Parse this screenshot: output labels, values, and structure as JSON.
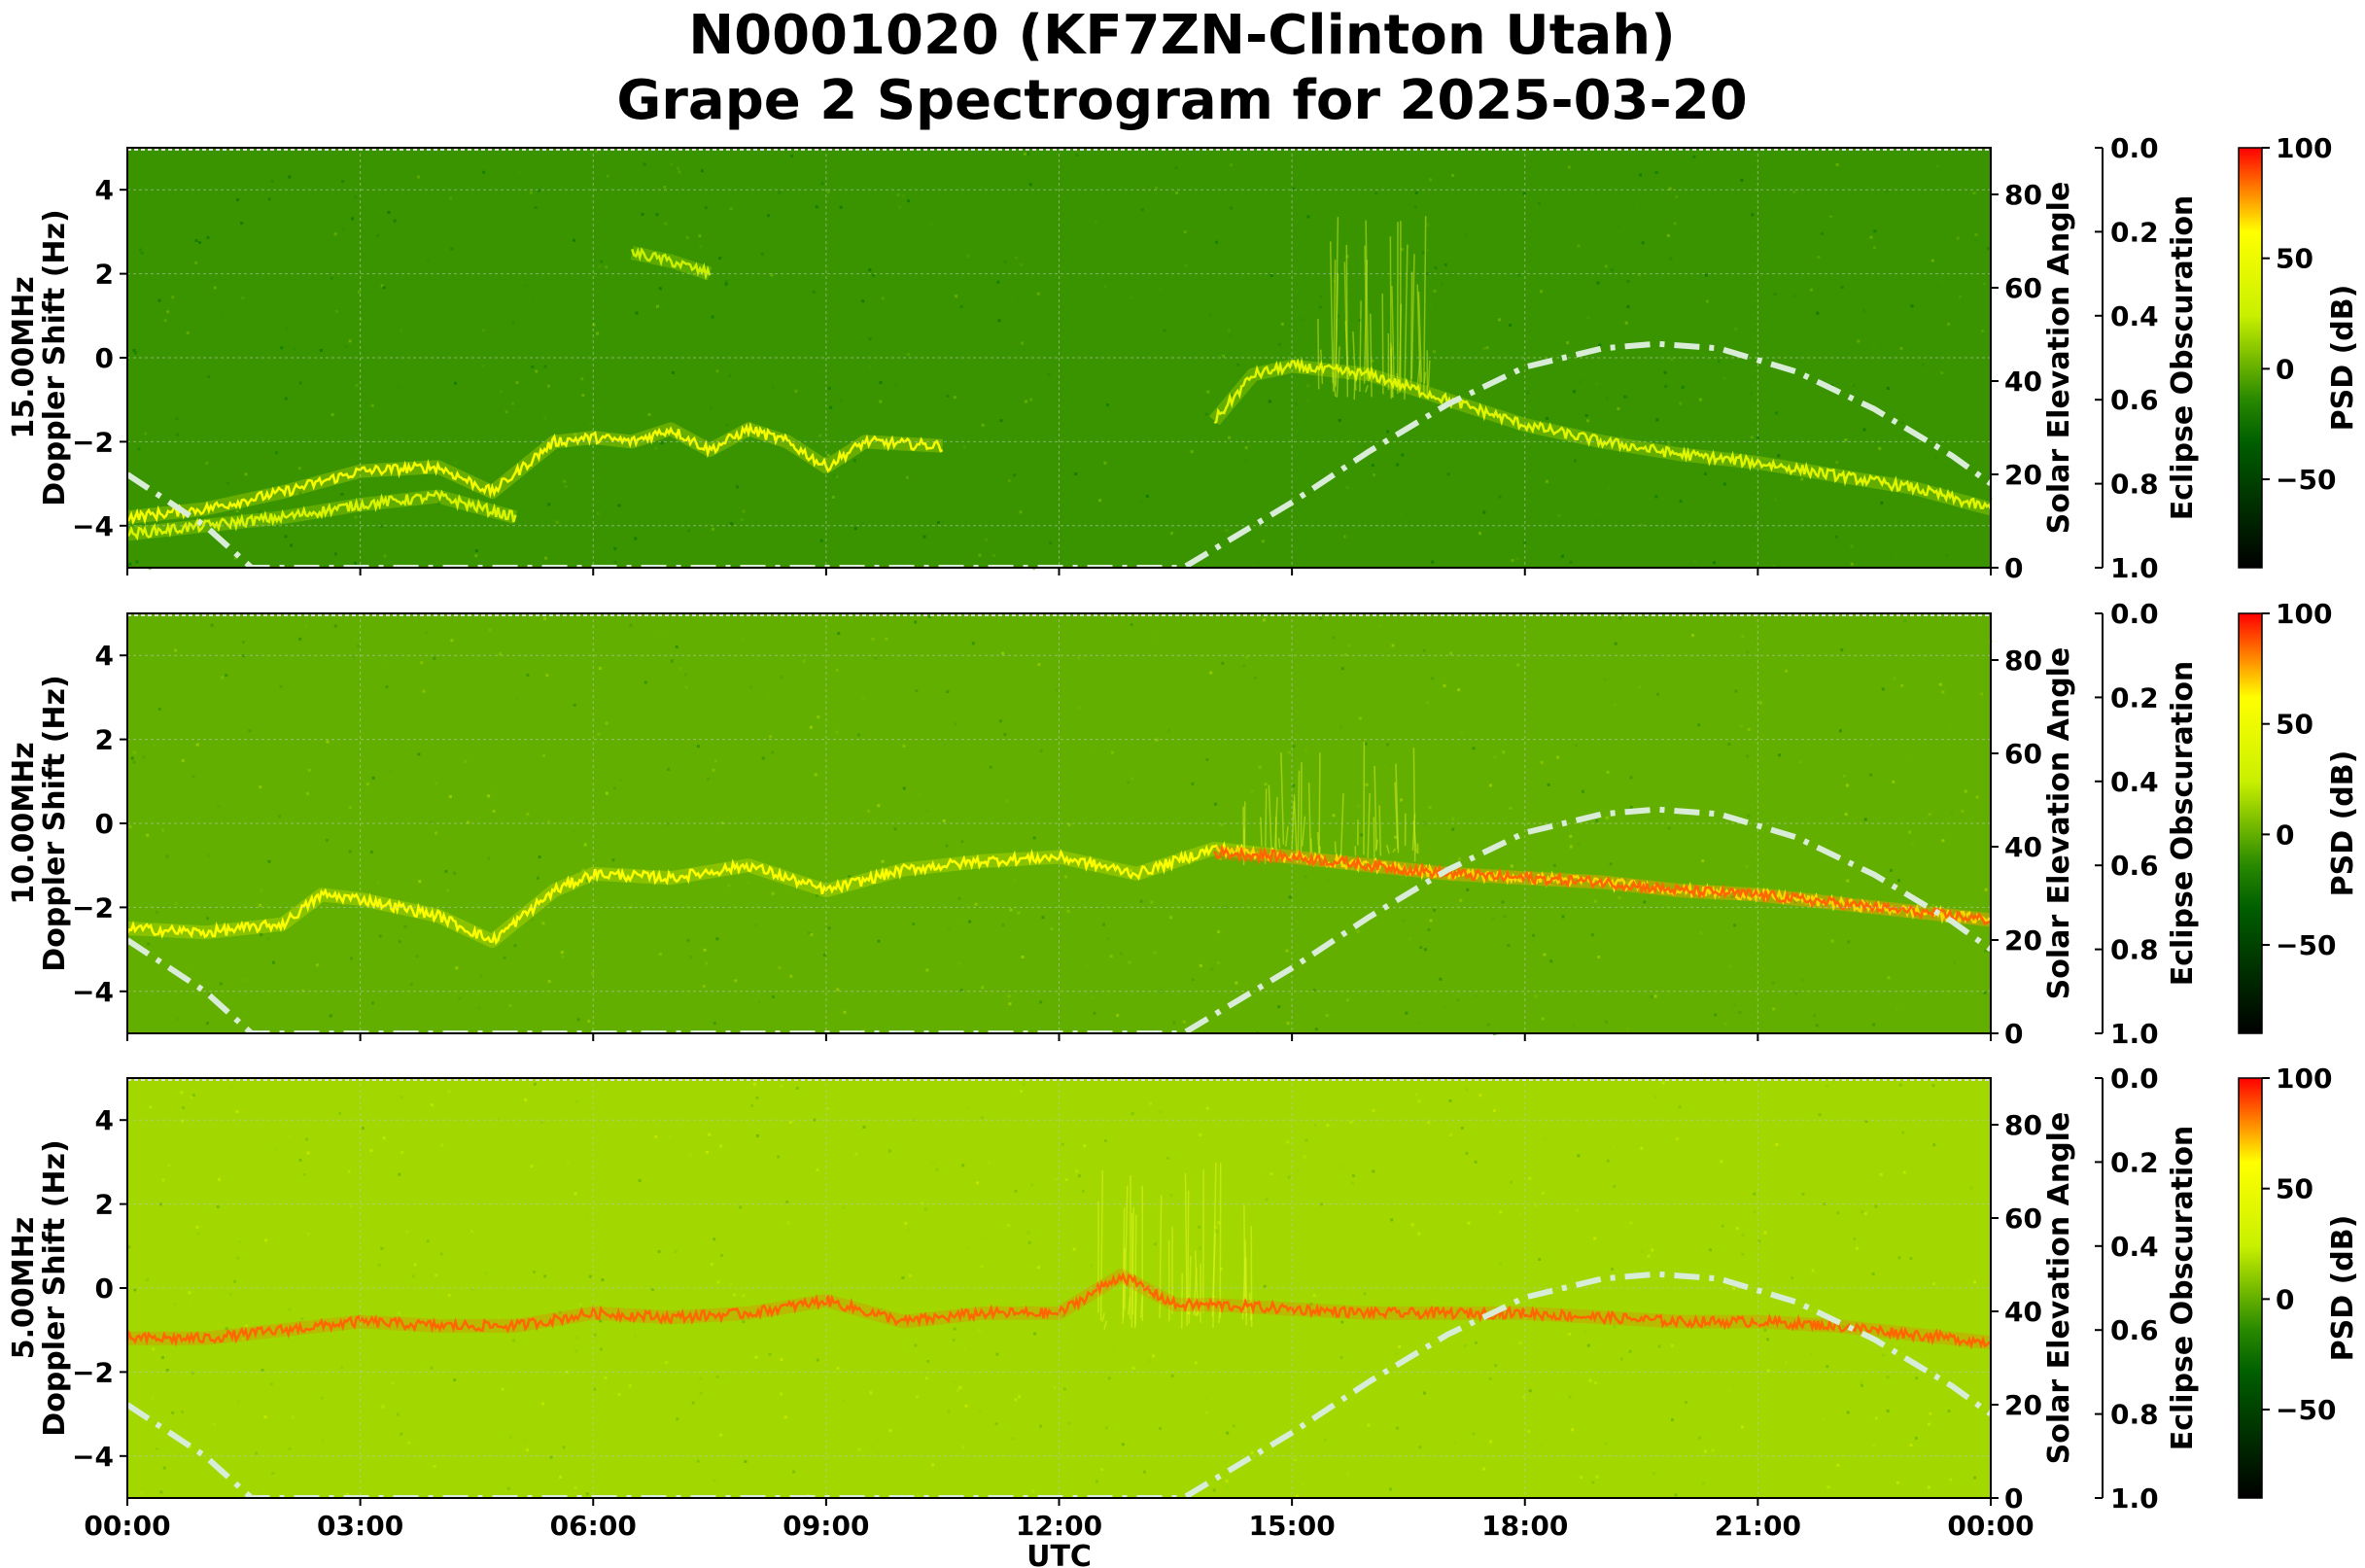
{
  "title_line1": "N0001020 (KF7ZN-Clinton Utah)",
  "title_line2": "Grape 2 Spectrogram for 2025-03-20",
  "colors": {
    "background": "#007a00",
    "trace_yellow": "#f2ff26",
    "trace_red": "#ff3a00",
    "solar_curve": "#d8ecd8",
    "colormap": [
      "#000000",
      "#006f00",
      "#c8f000",
      "#ffff00",
      "#ff0000"
    ]
  },
  "chart_data": [
    {
      "type": "heatmap",
      "panel": "15.00MHz",
      "ylabel": "15.00MHz\nDoppler Shift (Hz)",
      "ylim": [
        -5,
        5
      ],
      "y_ticks": [
        "−4",
        "−2",
        "0",
        "2",
        "4"
      ],
      "y_tick_values": [
        -4,
        -2,
        0,
        2,
        4
      ],
      "xlim_hours": [
        0,
        24
      ],
      "x_ticks": [
        "00:00",
        "03:00",
        "06:00",
        "09:00",
        "12:00",
        "15:00",
        "18:00",
        "21:00",
        "00:00"
      ],
      "right_ylabel": "Solar Elevation Angle",
      "right_ylim": [
        0,
        90
      ],
      "right_ticks": [
        "0",
        "20",
        "40",
        "60",
        "80"
      ],
      "eclipse_label": "Eclipse Obscuration",
      "eclipse_ticks": [
        "0.0",
        "0.2",
        "0.4",
        "0.6",
        "0.8",
        "1.0"
      ],
      "colorbar_label": "PSD (dB)",
      "colorbar_ticks": [
        "100",
        "50",
        "0",
        "−50"
      ],
      "colorbar_range": [
        -90,
        100
      ],
      "grid": true,
      "background_level": -10,
      "traces": [
        {
          "name": "doppler",
          "x": [
            0,
            1,
            2,
            3,
            4,
            4.7,
            5.5,
            6,
            6.5,
            7,
            7.5,
            8,
            8.5,
            9,
            9.5,
            10.5
          ],
          "y": [
            -3.8,
            -3.6,
            -3.2,
            -2.7,
            -2.6,
            -3.2,
            -2.0,
            -1.9,
            -2.0,
            -1.7,
            -2.2,
            -1.7,
            -2.0,
            -2.6,
            -2.0,
            -2.1
          ],
          "level": 55
        },
        {
          "name": "doppler-lower",
          "x": [
            0,
            1,
            2,
            3,
            4,
            5
          ],
          "y": [
            -4.2,
            -4.0,
            -3.8,
            -3.5,
            -3.3,
            -3.8
          ],
          "level": 35
        },
        {
          "name": "doppler-upper",
          "x": [
            6.5,
            7,
            7.5
          ],
          "y": [
            2.5,
            2.3,
            2.0
          ],
          "level": 25
        },
        {
          "name": "doppler",
          "x": [
            14.0,
            14.5,
            15.0,
            16.0,
            17.0,
            18.0,
            19.0,
            20.0,
            21.0,
            22.0,
            23.0,
            24.0
          ],
          "y": [
            -1.5,
            -0.4,
            -0.2,
            -0.4,
            -1.0,
            -1.6,
            -2.0,
            -2.3,
            -2.5,
            -2.8,
            -3.1,
            -3.6
          ],
          "level": 40
        }
      ],
      "spikes": [
        {
          "x": [
            15.3,
            16.8
          ],
          "y": [
            -1,
            3.5
          ]
        }
      ],
      "solar_elevation": {
        "x": [
          0,
          1,
          1.6,
          13.6,
          15,
          16,
          17,
          18,
          19,
          19.7,
          20.5,
          21.5,
          22.5,
          23.5,
          24
        ],
        "y": [
          20,
          9,
          0,
          0,
          14,
          25,
          35,
          43,
          47,
          48,
          47,
          42,
          34,
          24,
          18
        ]
      }
    },
    {
      "type": "heatmap",
      "panel": "10.00MHz",
      "ylabel": "10.00MHz\nDoppler Shift (Hz)",
      "ylim": [
        -5,
        5
      ],
      "y_ticks": [
        "−4",
        "−2",
        "0",
        "2",
        "4"
      ],
      "y_tick_values": [
        -4,
        -2,
        0,
        2,
        4
      ],
      "xlim_hours": [
        0,
        24
      ],
      "x_ticks": [
        "00:00",
        "03:00",
        "06:00",
        "09:00",
        "12:00",
        "15:00",
        "18:00",
        "21:00",
        "00:00"
      ],
      "right_ylabel": "Solar Elevation Angle",
      "right_ylim": [
        0,
        90
      ],
      "right_ticks": [
        "0",
        "20",
        "40",
        "60",
        "80"
      ],
      "eclipse_label": "Eclipse Obscuration",
      "eclipse_ticks": [
        "0.0",
        "0.2",
        "0.4",
        "0.6",
        "0.8",
        "1.0"
      ],
      "colorbar_label": "PSD (dB)",
      "colorbar_ticks": [
        "100",
        "50",
        "0",
        "−50"
      ],
      "colorbar_range": [
        -90,
        100
      ],
      "grid": true,
      "background_level": 0,
      "traces": [
        {
          "name": "doppler",
          "x": [
            0,
            1,
            2,
            2.5,
            3,
            4,
            4.7,
            5.5,
            6,
            7,
            8,
            9,
            10,
            11,
            12,
            13,
            14,
            15,
            16,
            17,
            18,
            19,
            20,
            21,
            22,
            23,
            24
          ],
          "y": [
            -2.5,
            -2.6,
            -2.4,
            -1.7,
            -1.8,
            -2.2,
            -2.8,
            -1.6,
            -1.2,
            -1.3,
            -1.0,
            -1.6,
            -1.1,
            -0.9,
            -0.8,
            -1.2,
            -0.6,
            -0.8,
            -1.0,
            -1.2,
            -1.3,
            -1.4,
            -1.6,
            -1.7,
            -1.9,
            -2.1,
            -2.3
          ],
          "level": 60
        },
        {
          "name": "doppler-hot",
          "x": [
            14,
            15,
            16,
            17,
            18,
            19,
            20,
            21,
            22,
            23,
            24
          ],
          "y": [
            -0.7,
            -0.8,
            -1.0,
            -1.2,
            -1.3,
            -1.4,
            -1.6,
            -1.7,
            -1.9,
            -2.1,
            -2.3
          ],
          "level": 85
        }
      ],
      "spikes": [
        {
          "x": [
            14.3,
            16.7
          ],
          "y": [
            -1,
            2.0
          ]
        }
      ],
      "solar_elevation": {
        "x": [
          0,
          1,
          1.6,
          13.6,
          15,
          16,
          17,
          18,
          19,
          19.7,
          20.5,
          21.5,
          22.5,
          23.5,
          24
        ],
        "y": [
          20,
          9,
          0,
          0,
          14,
          25,
          35,
          43,
          47,
          48,
          47,
          42,
          34,
          24,
          18
        ]
      }
    },
    {
      "type": "heatmap",
      "panel": "5.00MHz",
      "ylabel": "5.00MHz\nDoppler Shift (Hz)",
      "ylim": [
        -5,
        5
      ],
      "y_ticks": [
        "−4",
        "−2",
        "0",
        "2",
        "4"
      ],
      "y_tick_values": [
        -4,
        -2,
        0,
        2,
        4
      ],
      "xlim_hours": [
        0,
        24
      ],
      "x_ticks": [
        "00:00",
        "03:00",
        "06:00",
        "09:00",
        "12:00",
        "15:00",
        "18:00",
        "21:00",
        "00:00"
      ],
      "xlabel": "UTC",
      "right_ylabel": "Solar Elevation Angle",
      "right_ylim": [
        0,
        90
      ],
      "right_ticks": [
        "0",
        "20",
        "40",
        "60",
        "80"
      ],
      "eclipse_label": "Eclipse Obscuration",
      "eclipse_ticks": [
        "0.0",
        "0.2",
        "0.4",
        "0.6",
        "0.8",
        "1.0"
      ],
      "colorbar_label": "PSD (dB)",
      "colorbar_ticks": [
        "100",
        "50",
        "0",
        "−50"
      ],
      "colorbar_range": [
        -90,
        100
      ],
      "grid": true,
      "background_level": 15,
      "traces": [
        {
          "name": "doppler",
          "x": [
            0,
            1,
            2,
            3,
            4,
            5,
            6,
            7,
            8,
            9,
            10,
            11,
            12,
            12.8,
            13.5,
            14,
            15,
            16,
            17,
            18,
            19,
            20,
            21,
            22,
            23,
            24
          ],
          "y": [
            -1.2,
            -1.2,
            -1.0,
            -0.8,
            -0.9,
            -0.9,
            -0.6,
            -0.7,
            -0.6,
            -0.3,
            -0.8,
            -0.6,
            -0.6,
            0.3,
            -0.4,
            -0.4,
            -0.5,
            -0.6,
            -0.6,
            -0.6,
            -0.7,
            -0.8,
            -0.8,
            -0.9,
            -1.1,
            -1.3
          ],
          "level": 85
        }
      ],
      "spikes": [
        {
          "x": [
            12.5,
            14.5
          ],
          "y": [
            -1,
            3.0
          ]
        }
      ],
      "solar_elevation": {
        "x": [
          0,
          1,
          1.6,
          13.6,
          15,
          16,
          17,
          18,
          19,
          19.7,
          20.5,
          21.5,
          22.5,
          23.5,
          24
        ],
        "y": [
          20,
          9,
          0,
          0,
          14,
          25,
          35,
          43,
          47,
          48,
          47,
          42,
          34,
          24,
          18
        ]
      }
    }
  ]
}
